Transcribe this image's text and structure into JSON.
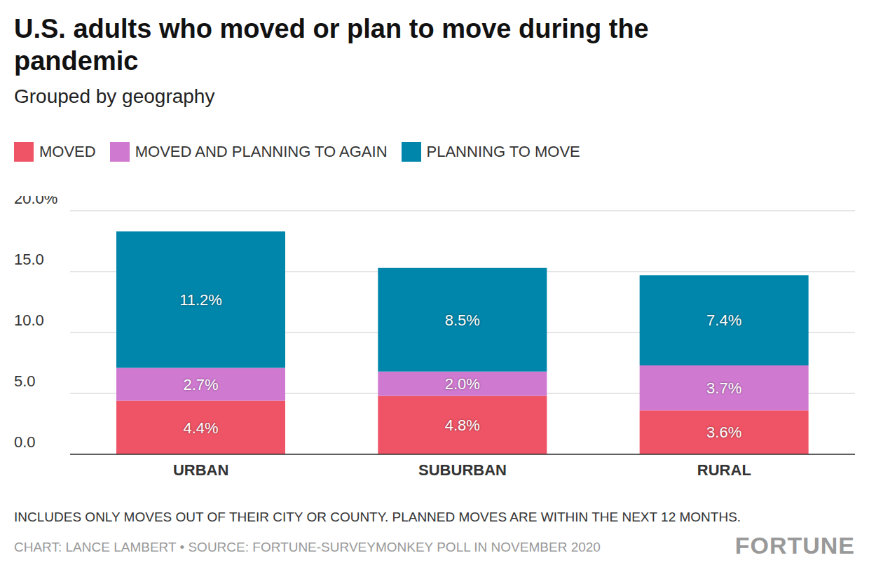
{
  "chart_data": {
    "type": "bar",
    "title": "U.S. adults who moved or plan to move during the pandemic",
    "subtitle": "Grouped by geography",
    "categories": [
      "URBAN",
      "SUBURBAN",
      "RURAL"
    ],
    "series": [
      {
        "name": "MOVED",
        "color": "#ef5466",
        "values": [
          4.4,
          4.8,
          3.6
        ],
        "value_labels": [
          "4.4%",
          "4.8%",
          "3.6%"
        ]
      },
      {
        "name": "MOVED AND PLANNING TO AGAIN",
        "color": "#cf7ad0",
        "values": [
          2.7,
          2.0,
          3.7
        ],
        "value_labels": [
          "2.7%",
          "2.0%",
          "3.7%"
        ]
      },
      {
        "name": "PLANNING TO MOVE",
        "color": "#0086ab",
        "values": [
          11.2,
          8.5,
          7.4
        ],
        "value_labels": [
          "11.2%",
          "8.5%",
          "7.4%"
        ]
      }
    ],
    "ylim": [
      0,
      20
    ],
    "yticks": [
      {
        "value": 0,
        "label": "0.0"
      },
      {
        "value": 5,
        "label": "5.0"
      },
      {
        "value": 10,
        "label": "10.0"
      },
      {
        "value": 15,
        "label": "15.0"
      },
      {
        "value": 20,
        "label": "20.0%"
      }
    ],
    "stacked": true,
    "data_labels": true,
    "grid": true,
    "legend": "top",
    "note": "INCLUDES ONLY MOVES OUT OF THEIR CITY OR COUNTY. PLANNED MOVES ARE WITHIN THE NEXT 12 MONTHS.",
    "source": "CHART: LANCE LAMBERT • SOURCE: FORTUNE-SURVEYMONKEY POLL IN NOVEMBER 2020",
    "logo": "FORTUNE"
  }
}
